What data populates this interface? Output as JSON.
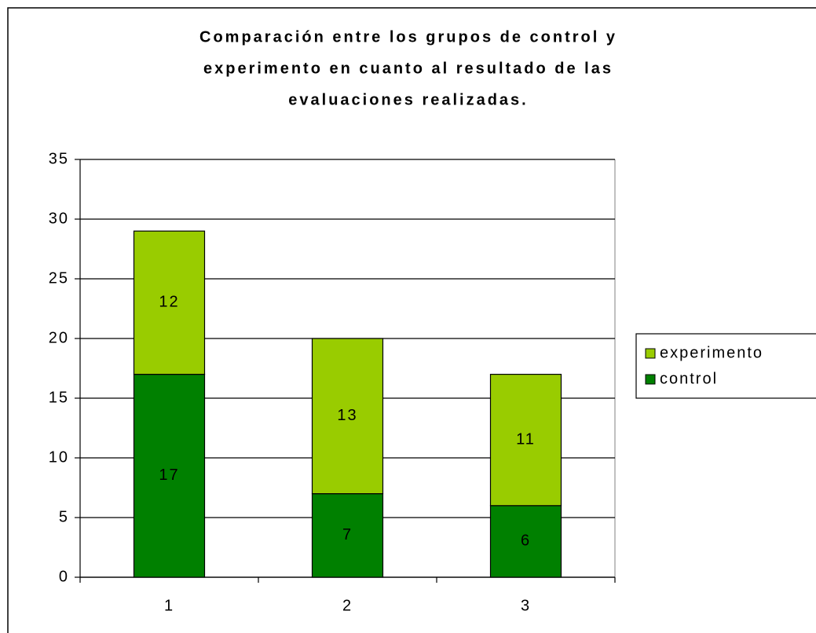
{
  "chart_data": {
    "type": "bar",
    "stacked": true,
    "title": [
      "Comparación entre los grupos de control y",
      "experimento en cuanto al resultado de las",
      "evaluaciones realizadas."
    ],
    "categories": [
      "1",
      "2",
      "3"
    ],
    "series": [
      {
        "name": "control",
        "color": "#008000",
        "values": [
          17,
          7,
          6
        ]
      },
      {
        "name": "experimento",
        "color": "#99cc00",
        "values": [
          12,
          13,
          11
        ]
      }
    ],
    "ylim": [
      0,
      35
    ],
    "yticks": [
      0,
      5,
      10,
      15,
      20,
      25,
      30,
      35
    ],
    "grid": true,
    "legend": "right"
  }
}
